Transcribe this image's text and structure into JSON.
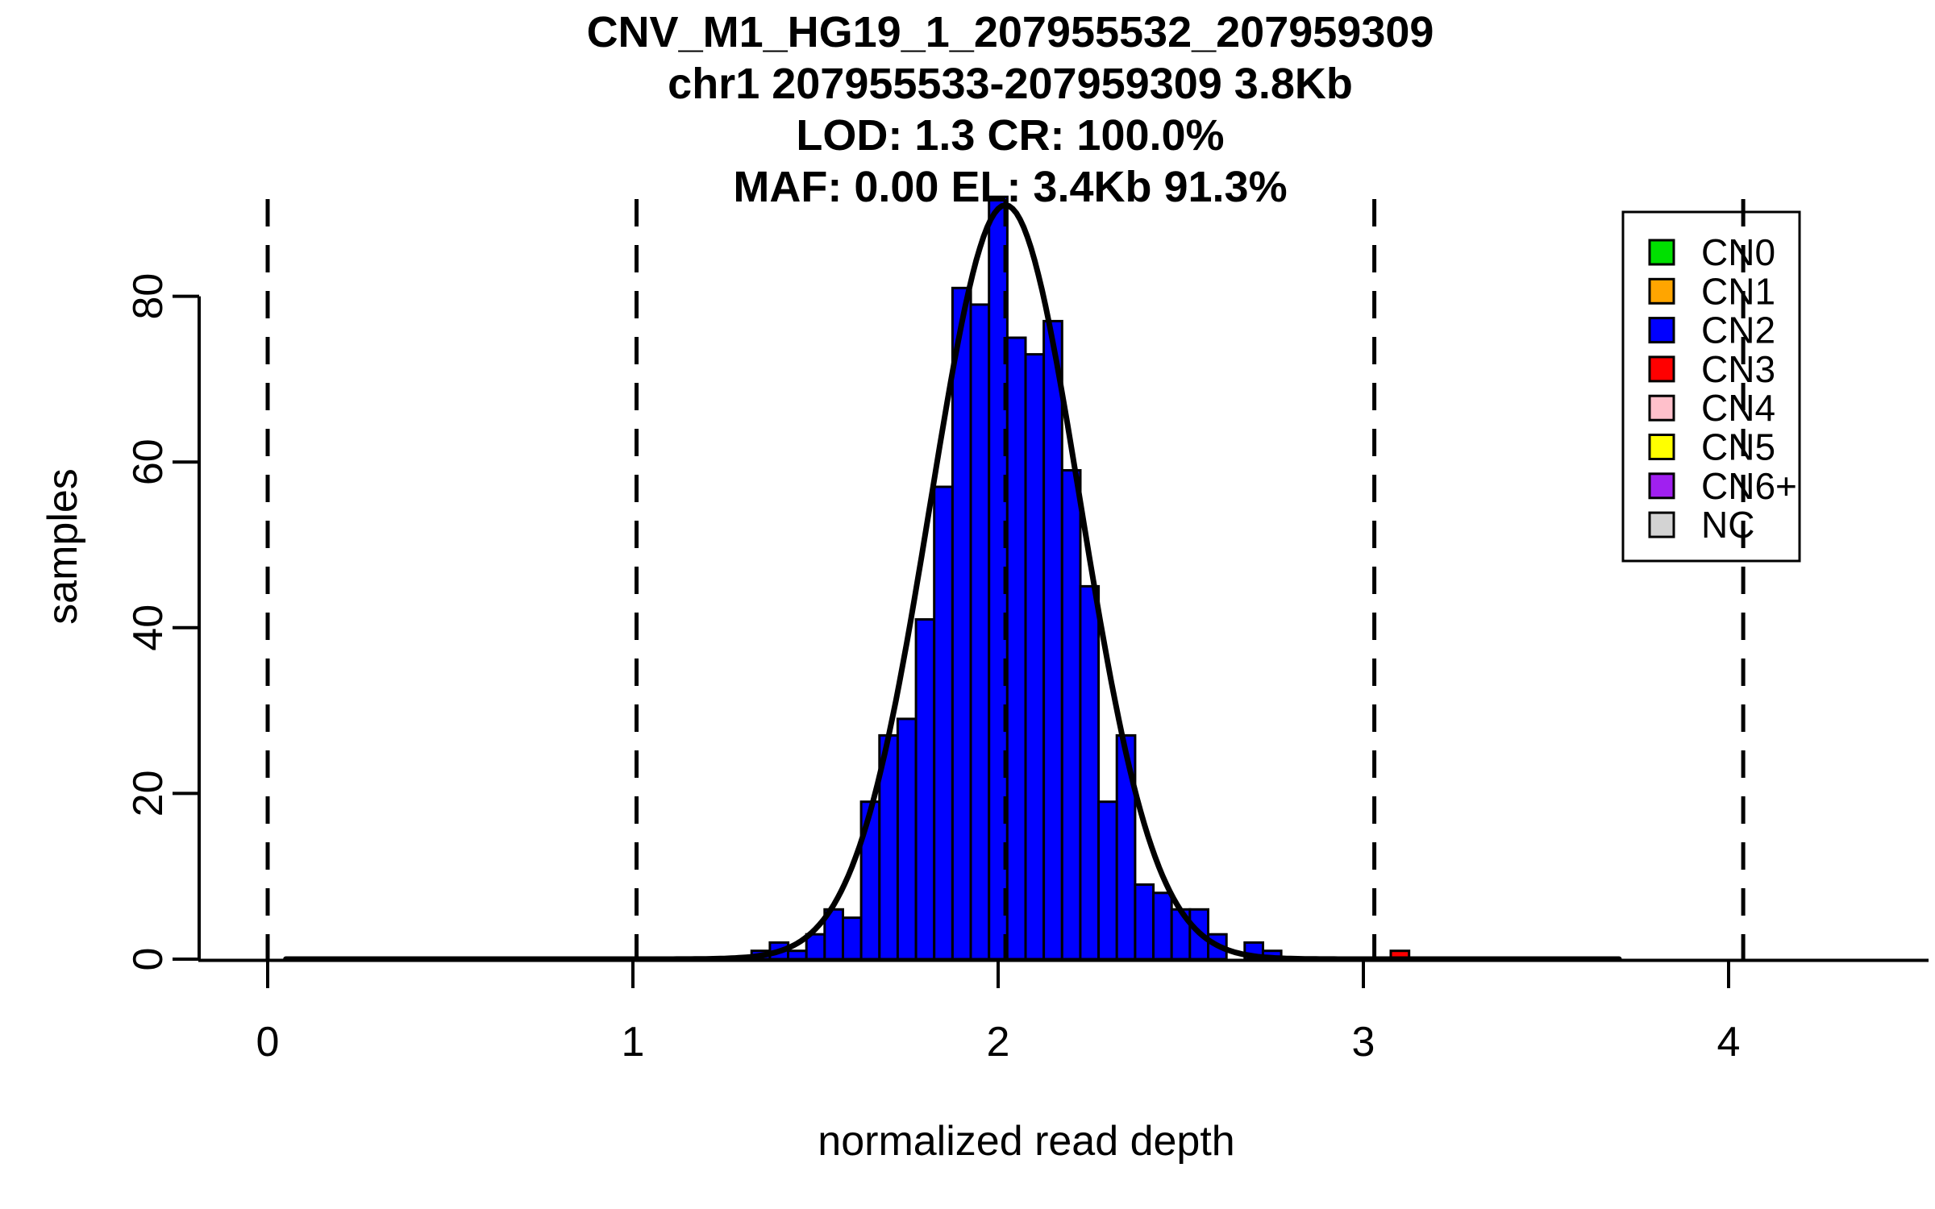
{
  "title": {
    "line1": "CNV_M1_HG19_1_207955532_207959309",
    "line2": "chr1 207955533-207959309 3.8Kb",
    "line3": "LOD: 1.3 CR: 100.0%",
    "line4": "MAF: 0.00 EL: 3.4Kb 91.3%"
  },
  "axes": {
    "x_label": "normalized read depth",
    "y_label": "samples"
  },
  "legend": {
    "entries": [
      {
        "label": "CN0",
        "color": "#00E000"
      },
      {
        "label": "CN1",
        "color": "#FFA500"
      },
      {
        "label": "CN2",
        "color": "#0000FF"
      },
      {
        "label": "CN3",
        "color": "#FF0000"
      },
      {
        "label": "CN4",
        "color": "#FFC0CB"
      },
      {
        "label": "CN5",
        "color": "#FFFF00"
      },
      {
        "label": "CN6+",
        "color": "#A020F0"
      },
      {
        "label": "NC",
        "color": "#D3D3D3"
      }
    ]
  },
  "colors": {
    "bar_fill": "#0000FF",
    "outlier_fill": "#FF0000",
    "stroke": "#000000",
    "background": "#FFFFFF"
  },
  "chart_data": {
    "type": "bar",
    "subtype": "histogram-with-gaussian-fit",
    "xlabel": "normalized read depth",
    "ylabel": "samples",
    "x_ticks": [
      0,
      1,
      2,
      3,
      4
    ],
    "y_ticks": [
      0,
      20,
      40,
      60,
      80
    ],
    "xlim": [
      -0.19,
      4.55
    ],
    "ylim": [
      0,
      92
    ],
    "grid": false,
    "bin_width": 0.05,
    "bars": [
      {
        "center": 1.35,
        "count": 1,
        "cn": "CN2"
      },
      {
        "center": 1.4,
        "count": 2,
        "cn": "CN2"
      },
      {
        "center": 1.45,
        "count": 1,
        "cn": "CN2"
      },
      {
        "center": 1.5,
        "count": 3,
        "cn": "CN2"
      },
      {
        "center": 1.55,
        "count": 6,
        "cn": "CN2"
      },
      {
        "center": 1.6,
        "count": 5,
        "cn": "CN2"
      },
      {
        "center": 1.65,
        "count": 19,
        "cn": "CN2"
      },
      {
        "center": 1.7,
        "count": 27,
        "cn": "CN2"
      },
      {
        "center": 1.75,
        "count": 29,
        "cn": "CN2"
      },
      {
        "center": 1.8,
        "count": 41,
        "cn": "CN2"
      },
      {
        "center": 1.85,
        "count": 57,
        "cn": "CN2"
      },
      {
        "center": 1.9,
        "count": 81,
        "cn": "CN2"
      },
      {
        "center": 1.95,
        "count": 79,
        "cn": "CN2"
      },
      {
        "center": 2.0,
        "count": 92,
        "cn": "CN2"
      },
      {
        "center": 2.05,
        "count": 75,
        "cn": "CN2"
      },
      {
        "center": 2.1,
        "count": 73,
        "cn": "CN2"
      },
      {
        "center": 2.15,
        "count": 77,
        "cn": "CN2"
      },
      {
        "center": 2.2,
        "count": 59,
        "cn": "CN2"
      },
      {
        "center": 2.25,
        "count": 45,
        "cn": "CN2"
      },
      {
        "center": 2.3,
        "count": 19,
        "cn": "CN2"
      },
      {
        "center": 2.35,
        "count": 27,
        "cn": "CN2"
      },
      {
        "center": 2.4,
        "count": 9,
        "cn": "CN2"
      },
      {
        "center": 2.45,
        "count": 8,
        "cn": "CN2"
      },
      {
        "center": 2.5,
        "count": 6,
        "cn": "CN2"
      },
      {
        "center": 2.55,
        "count": 6,
        "cn": "CN2"
      },
      {
        "center": 2.6,
        "count": 3,
        "cn": "CN2"
      },
      {
        "center": 2.65,
        "count": 0,
        "cn": "CN2"
      },
      {
        "center": 2.7,
        "count": 2,
        "cn": "CN2"
      },
      {
        "center": 2.75,
        "count": 1,
        "cn": "CN2"
      },
      {
        "center": 3.1,
        "count": 1,
        "cn": "CN3"
      }
    ],
    "fit_curve": {
      "shape": "gaussian",
      "mean": 2.02,
      "sd": 0.205,
      "peak": 91,
      "x_from": 0.05,
      "x_to": 3.7
    },
    "dashed_vlines_x": [
      0.0,
      1.01,
      2.02,
      3.03,
      4.04
    ],
    "legend_position": "top-right"
  }
}
